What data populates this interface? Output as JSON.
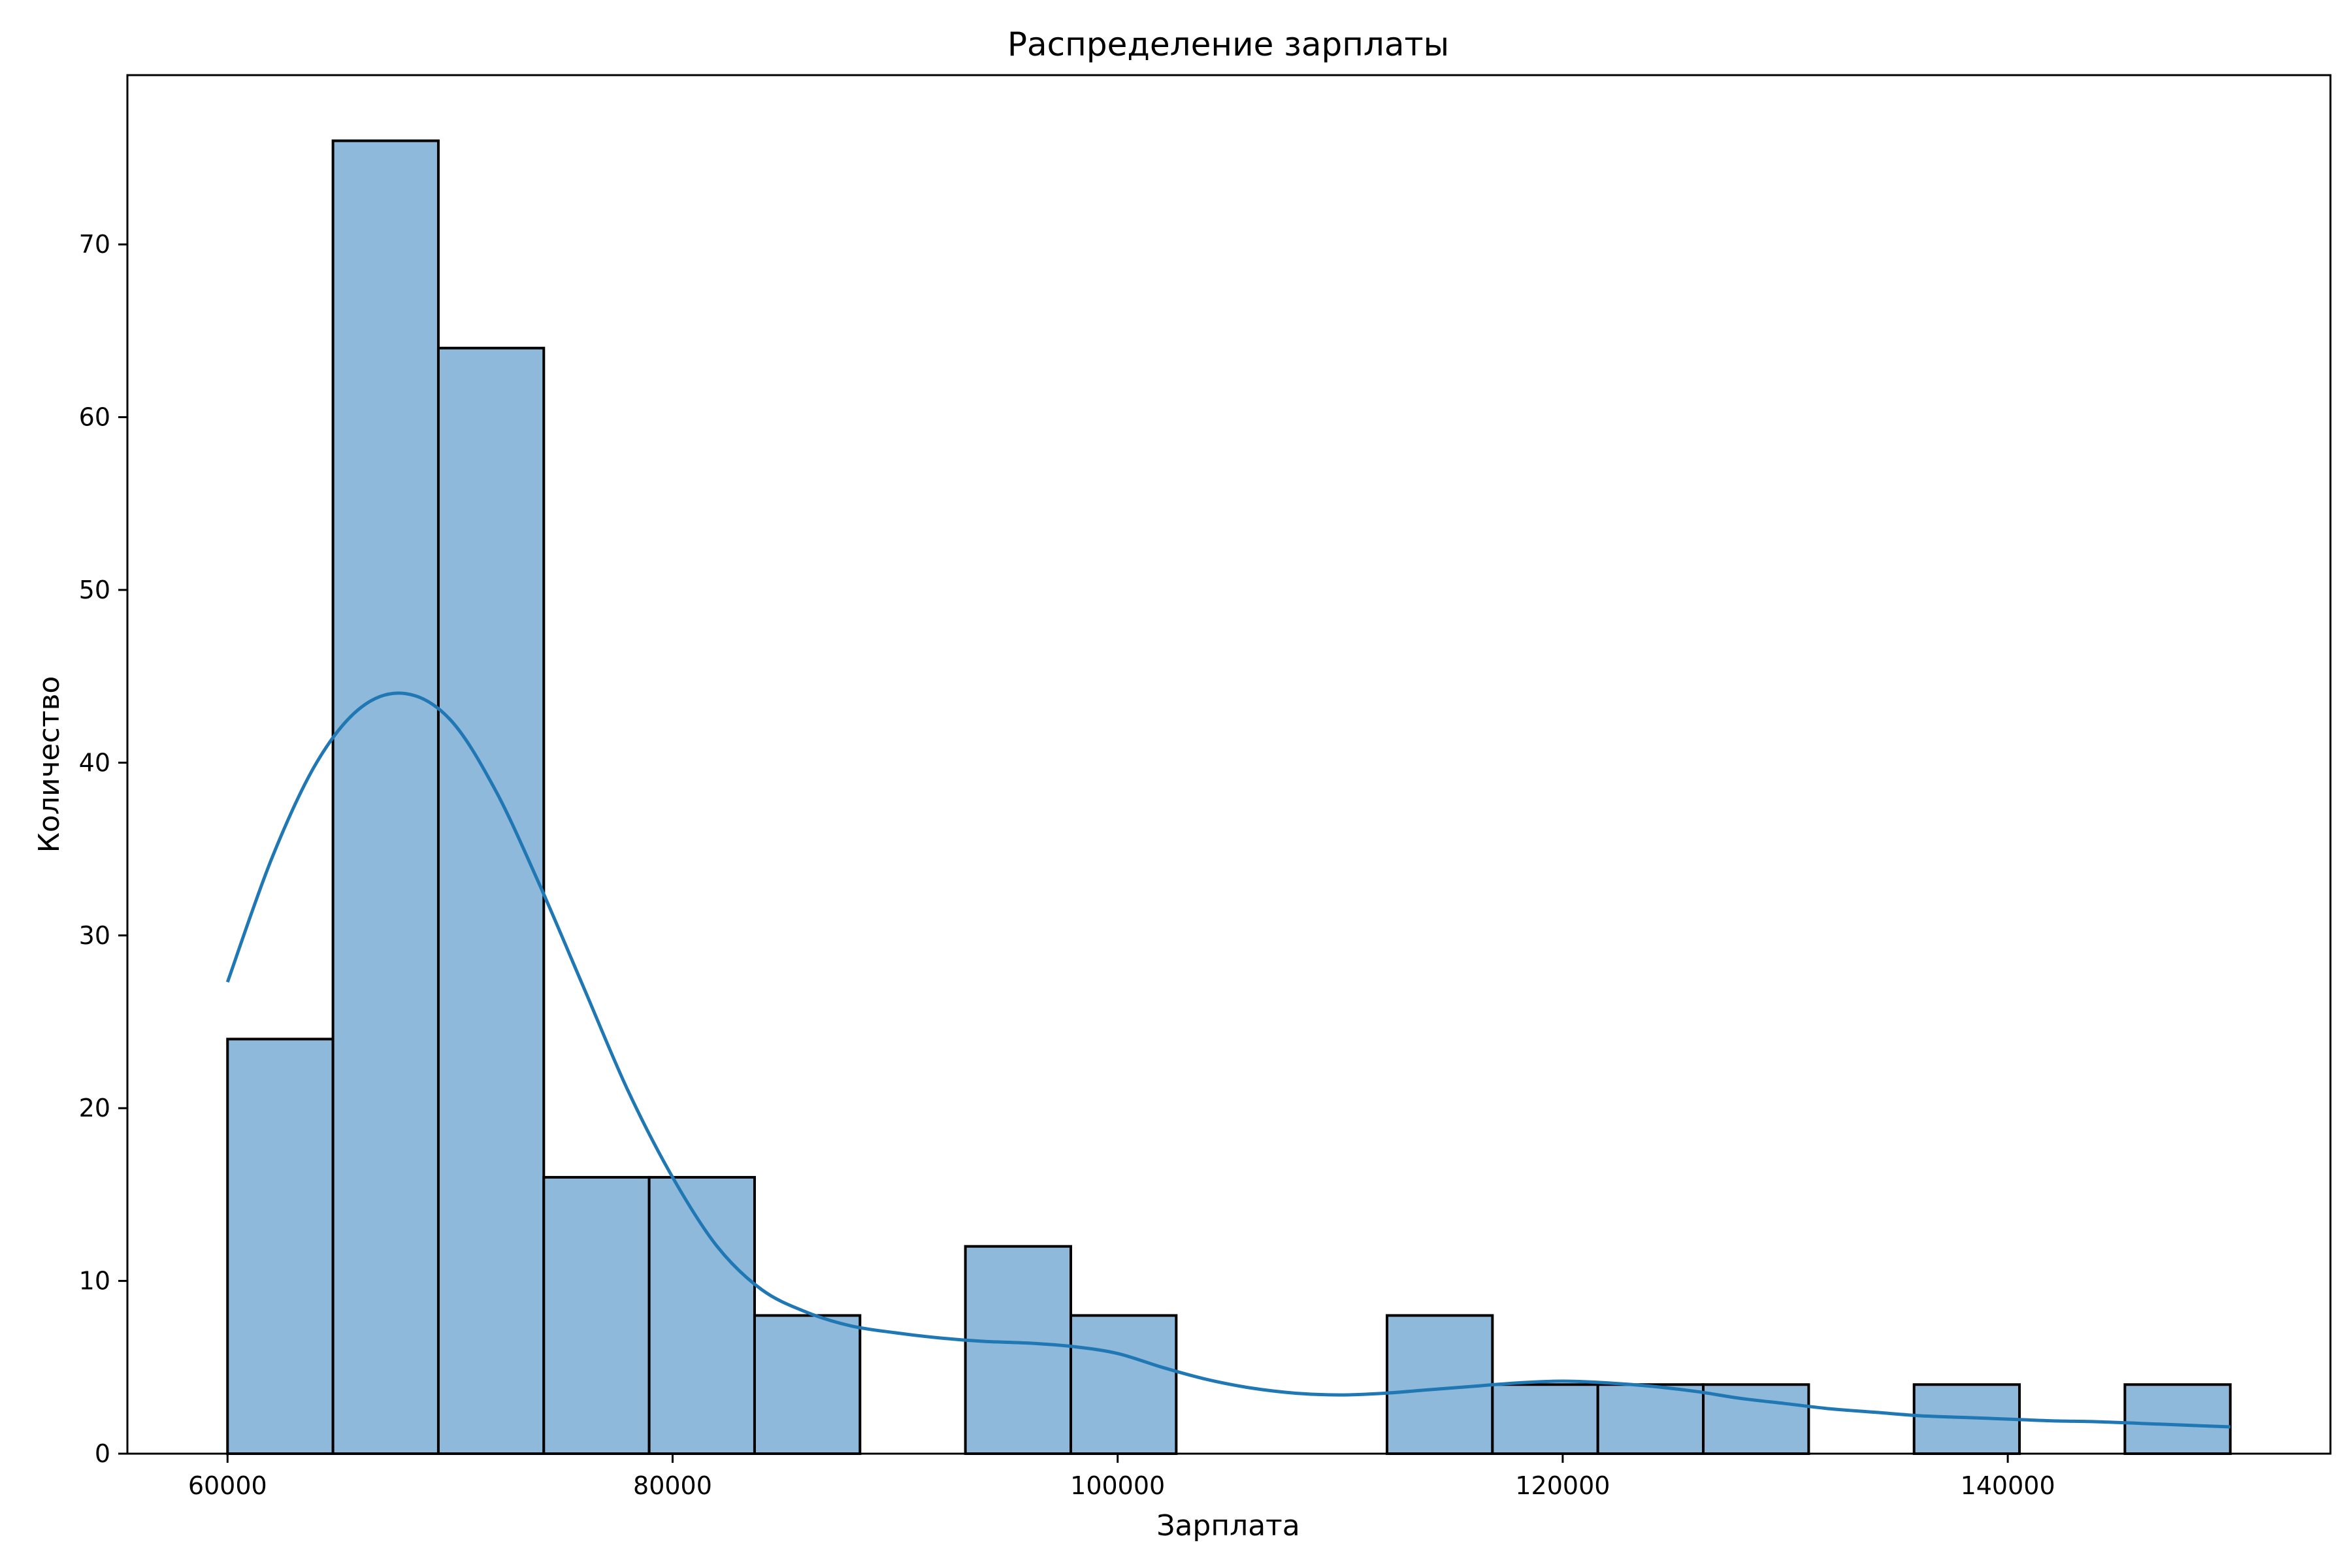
{
  "chart_data": {
    "type": "bar",
    "title": "Распределение зарплаты",
    "xlabel": "Зарплата",
    "ylabel": "Количество",
    "xlim": [
      55500,
      154500
    ],
    "ylim": [
      0,
      79.8
    ],
    "xticks": [
      60000,
      80000,
      100000,
      120000,
      140000
    ],
    "yticks": [
      0,
      10,
      20,
      30,
      40,
      50,
      60,
      70
    ],
    "bin_edges": [
      60000,
      64737,
      69474,
      74211,
      78947,
      83684,
      88421,
      93158,
      97895,
      102632,
      107368,
      112105,
      116842,
      121579,
      126316,
      131053,
      135789,
      140526,
      145263,
      150000
    ],
    "counts": [
      24,
      76,
      64,
      16,
      16,
      8,
      0,
      12,
      8,
      0,
      0,
      8,
      4,
      4,
      4,
      0,
      4,
      0,
      4
    ],
    "kde": {
      "x": [
        60000,
        62000,
        64000,
        66000,
        68000,
        70000,
        72000,
        74000,
        76000,
        78000,
        80000,
        82000,
        84000,
        86000,
        88000,
        90000,
        92000,
        94000,
        96000,
        98000,
        100000,
        102000,
        104000,
        106000,
        108000,
        110000,
        112000,
        114000,
        116000,
        118000,
        120000,
        122000,
        124000,
        126000,
        128000,
        130000,
        132000,
        134000,
        136000,
        138000,
        140000,
        142000,
        144000,
        146000,
        148000,
        150000
      ],
      "y": [
        27.3,
        34.5,
        40.0,
        43.2,
        44.0,
        42.5,
        38.5,
        33.0,
        27.0,
        21.0,
        16.0,
        12.0,
        9.5,
        8.2,
        7.4,
        7.0,
        6.7,
        6.5,
        6.4,
        6.2,
        5.8,
        5.0,
        4.3,
        3.8,
        3.5,
        3.4,
        3.5,
        3.7,
        3.9,
        4.1,
        4.2,
        4.1,
        3.9,
        3.6,
        3.2,
        2.9,
        2.6,
        2.4,
        2.2,
        2.1,
        2.0,
        1.9,
        1.85,
        1.75,
        1.65,
        1.55
      ]
    },
    "colors": {
      "bar_fill": "#8fb9da",
      "bar_edge": "#000000",
      "kde_line": "#1f77b4"
    },
    "grid": false,
    "legend": "none"
  }
}
